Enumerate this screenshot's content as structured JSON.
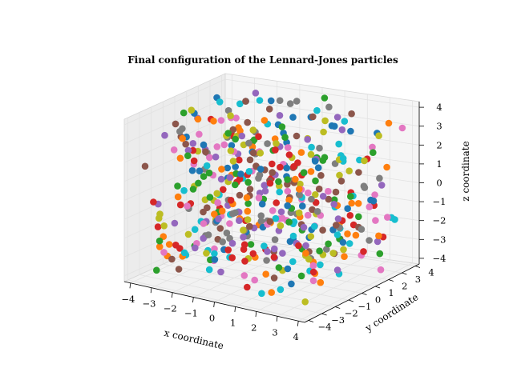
{
  "chart_data": {
    "type": "scatter",
    "projection": "3d",
    "title": "Final configuration of the Lennard-Jones particles",
    "xlabel": "x coordinate",
    "ylabel": "y coordinate",
    "zlabel": "z coordinate",
    "xlim": [
      -4.3,
      4.3
    ],
    "ylim": [
      -4.3,
      4.3
    ],
    "zlim": [
      -4.3,
      4.3
    ],
    "xticks": [
      "−4",
      "−3",
      "−2",
      "−1",
      "0",
      "1",
      "2",
      "3",
      "4"
    ],
    "yticks": [
      "−4",
      "−3",
      "−2",
      "−1",
      "0",
      "1",
      "2",
      "3",
      "4"
    ],
    "zticks": [
      "−4",
      "−3",
      "−2",
      "−1",
      "0",
      "1",
      "2",
      "3",
      "4"
    ],
    "grid": true,
    "legend": "none",
    "palette": [
      "#1f77b4",
      "#ff7f0e",
      "#2ca02c",
      "#d62728",
      "#9467bd",
      "#8c564b",
      "#e377c2",
      "#7f7f7f",
      "#bcbd22",
      "#17becf"
    ],
    "point_count": 500,
    "point_seed": 20240611,
    "note_points": "Particle positions are uniformly scattered in the cube [-4, 4]^3; each particle colored by cycling the palette."
  }
}
